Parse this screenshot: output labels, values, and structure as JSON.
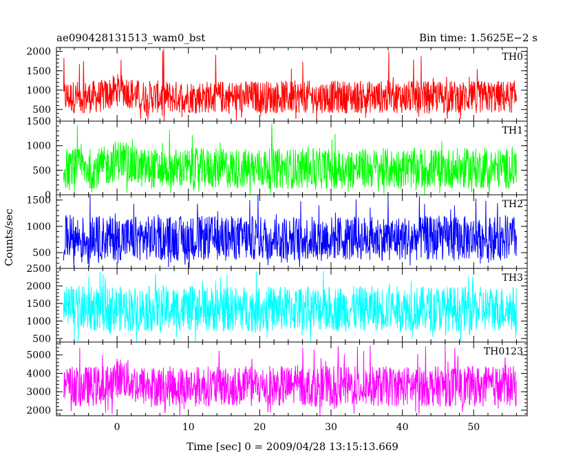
{
  "header": {
    "title": "ae090428131513_wam0_bst",
    "bin_time": "Bin time: 1.5625E−2 s"
  },
  "chart_data": {
    "type": "line",
    "title": "ae090428131513_wam0_bst",
    "xlabel": "Time [sec] 0 = 2009/04/28 13:15:13.669",
    "ylabel": "Counts/sec",
    "xlim": [
      -8.5,
      57.5
    ],
    "x_range_of_data": [
      -7.5,
      56
    ],
    "x_ticks": [
      0,
      10,
      20,
      30,
      40,
      50
    ],
    "grid": false,
    "panels": [
      {
        "name": "TH0",
        "color": "#ff0000",
        "ylim": [
          200,
          2100
        ],
        "y_ticks": [
          500,
          1000,
          1500,
          2000
        ],
        "typical_range": [
          400,
          1250
        ],
        "peak_max": 2100,
        "features": [
          {
            "x": 0.5,
            "description": "brief increase of count rate"
          }
        ]
      },
      {
        "name": "TH1",
        "color": "#00ff00",
        "ylim": [
          0,
          1500
        ],
        "y_ticks": [
          0,
          500,
          1000,
          1500
        ],
        "typical_range": [
          120,
          950
        ],
        "peak_max": 1500
      },
      {
        "name": "TH2",
        "color": "#0000ff",
        "ylim": [
          200,
          1600
        ],
        "y_ticks": [
          500,
          1000,
          1500
        ],
        "typical_range": [
          350,
          1200
        ],
        "peak_max": 1600
      },
      {
        "name": "TH3",
        "color": "#00ffff",
        "ylim": [
          400,
          2500
        ],
        "y_ticks": [
          500,
          1000,
          1500,
          2000,
          2500
        ],
        "typical_range": [
          700,
          2000
        ],
        "peak_max": 2500
      },
      {
        "name": "TH0123",
        "color": "#ff00ff",
        "ylim": [
          1700,
          5700
        ],
        "y_ticks": [
          2000,
          3000,
          4000,
          5000
        ],
        "typical_range": [
          2200,
          4400
        ],
        "peak_max": 5600
      }
    ]
  }
}
